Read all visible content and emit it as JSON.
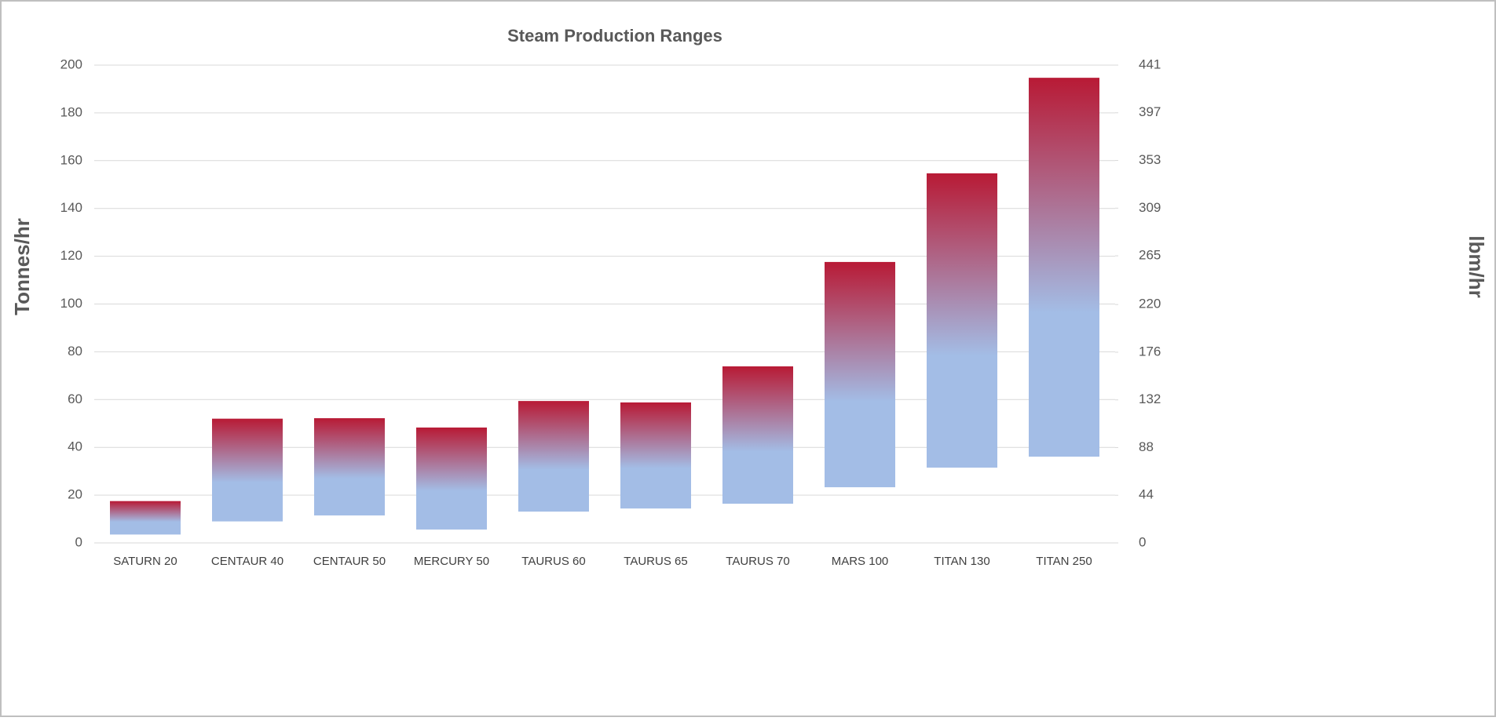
{
  "chart_data": {
    "type": "range_bar",
    "title": "Steam Production Ranges",
    "y_label": "Tonnes/hr",
    "y2_label": "lbm/hr",
    "categories": [
      "SATURN 20",
      "CENTAUR 40",
      "CENTAUR 50",
      "MERCURY 50",
      "TAURUS 60",
      "TAURUS 65",
      "TAURUS 70",
      "MARS 100",
      "TITAN 130",
      "TITAN 250"
    ],
    "low": [
      3.5,
      9,
      11.5,
      5.6,
      13.1,
      14.4,
      16.4,
      23.3,
      31.5,
      36.1
    ],
    "high": [
      17.5,
      52,
      52.2,
      48.3,
      59.4,
      58.8,
      73.9,
      117.6,
      154.7,
      194.7
    ],
    "color_top": "#b81a35",
    "color_bottom": "#a3bde6",
    "ylim": [
      0,
      200
    ],
    "yticks": [
      0,
      20,
      40,
      60,
      80,
      100,
      120,
      140,
      160,
      180,
      200
    ],
    "y2lim": [
      0,
      441
    ],
    "y2ticks": [
      0,
      44,
      88,
      132,
      176,
      220,
      265,
      309,
      353,
      397,
      441
    ],
    "grid": true
  }
}
